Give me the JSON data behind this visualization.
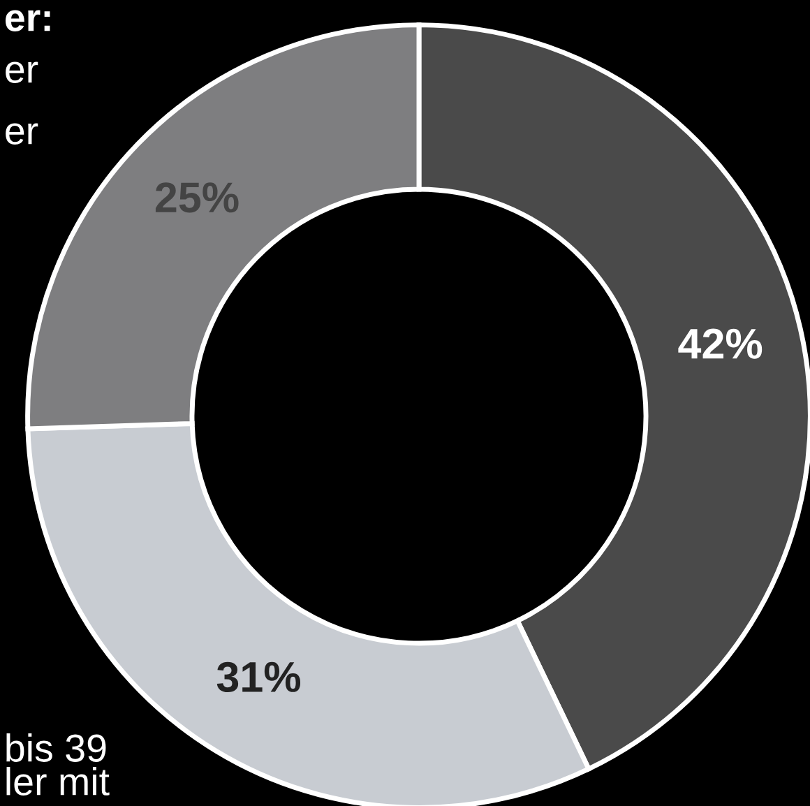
{
  "chart_data": {
    "type": "donut",
    "categories": [
      null,
      null,
      null
    ],
    "values": [
      42,
      31,
      25
    ],
    "colors": [
      "#4a4a4a",
      "#c8ccd2",
      "#7e7e80"
    ],
    "value_labels": [
      "42%",
      "31%",
      "25%"
    ],
    "legend": false,
    "annotations": [
      "er:",
      "er",
      "er",
      "bis 39",
      "ler mit"
    ]
  }
}
